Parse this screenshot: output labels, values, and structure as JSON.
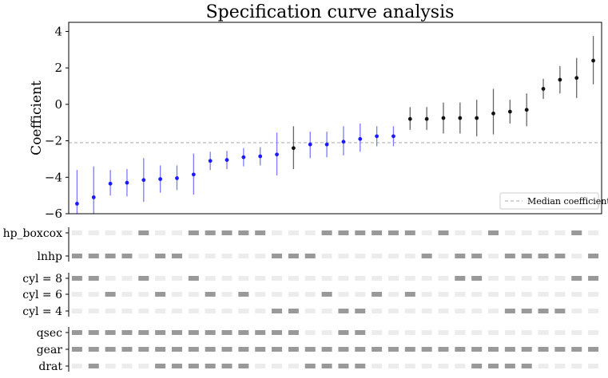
{
  "chart_data": {
    "type": "scatter",
    "title": "Specification curve analysis",
    "xlabel": "",
    "ylabel": "Coefficient",
    "ylim": [
      -6,
      4.5
    ],
    "yticks": [
      -6,
      -4,
      -2,
      0,
      2,
      4
    ],
    "median": -2.1,
    "legend": {
      "label": "Median coefficient",
      "position": "lower-right"
    },
    "colors": {
      "significant": "#1a1aff",
      "not_significant": "#111111",
      "median": "#bbbbbb",
      "active": "#999999",
      "inactive": "#ececec"
    },
    "coefficients": [
      -5.45,
      -5.1,
      -4.35,
      -4.3,
      -4.15,
      -4.1,
      -4.05,
      -3.85,
      -3.1,
      -3.05,
      -2.9,
      -2.85,
      -2.75,
      -2.4,
      -2.2,
      -2.2,
      -2.05,
      -1.9,
      -1.75,
      -1.75,
      -0.8,
      -0.8,
      -0.75,
      -0.75,
      -0.75,
      -0.5,
      -0.4,
      -0.3,
      0.85,
      1.35,
      1.45,
      2.4
    ],
    "ci_low": [
      -7.3,
      -6.8,
      -5.0,
      -5.05,
      -5.35,
      -4.85,
      -4.7,
      -4.95,
      -3.6,
      -3.55,
      -3.4,
      -3.35,
      -3.9,
      -3.55,
      -2.95,
      -2.9,
      -2.8,
      -2.6,
      -2.3,
      -2.3,
      -1.4,
      -1.4,
      -1.6,
      -1.6,
      -1.75,
      -1.65,
      -1.05,
      -1.2,
      0.3,
      0.6,
      0.35,
      1.1
    ],
    "ci_high": [
      -3.6,
      -3.4,
      -3.6,
      -3.55,
      -2.95,
      -3.35,
      -3.35,
      -2.7,
      -2.6,
      -2.55,
      -2.4,
      -2.35,
      -1.55,
      -1.2,
      -1.5,
      -1.5,
      -1.2,
      -1.05,
      -1.2,
      -1.2,
      -0.15,
      -0.15,
      0.1,
      0.1,
      0.25,
      0.85,
      0.25,
      0.6,
      1.4,
      2.1,
      2.55,
      3.75
    ],
    "significant": [
      true,
      true,
      true,
      true,
      true,
      true,
      true,
      true,
      true,
      true,
      true,
      true,
      true,
      false,
      true,
      true,
      true,
      true,
      true,
      true,
      false,
      false,
      false,
      false,
      false,
      false,
      false,
      false,
      false,
      false,
      false,
      false
    ],
    "indicator_groups": [
      [
        {
          "label": "hp_boxcox",
          "active": [
            0,
            0,
            0,
            0,
            1,
            0,
            0,
            1,
            1,
            1,
            1,
            1,
            0,
            0,
            0,
            1,
            1,
            1,
            1,
            1,
            1,
            0,
            1,
            0,
            0,
            1,
            0,
            0,
            0,
            0,
            1,
            0
          ]
        },
        {
          "label": "lnhp",
          "active": [
            1,
            1,
            1,
            1,
            0,
            1,
            1,
            0,
            0,
            0,
            0,
            0,
            1,
            1,
            1,
            0,
            0,
            0,
            0,
            0,
            0,
            1,
            0,
            1,
            1,
            0,
            1,
            1,
            1,
            1,
            0,
            1
          ]
        }
      ],
      [
        {
          "label": "cyl = 8",
          "active": [
            1,
            1,
            0,
            0,
            1,
            0,
            0,
            1,
            0,
            0,
            0,
            0,
            0,
            0,
            0,
            0,
            0,
            0,
            0,
            0,
            0,
            0,
            0,
            1,
            1,
            0,
            0,
            0,
            0,
            0,
            1,
            1
          ]
        },
        {
          "label": "cyl = 6",
          "active": [
            0,
            0,
            1,
            0,
            0,
            1,
            0,
            0,
            1,
            0,
            1,
            0,
            0,
            0,
            0,
            1,
            0,
            0,
            1,
            0,
            1,
            0,
            0,
            0,
            0,
            0,
            0,
            0,
            0,
            0,
            0,
            0
          ]
        },
        {
          "label": "cyl = 4",
          "active": [
            0,
            0,
            0,
            0,
            0,
            0,
            0,
            0,
            0,
            0,
            0,
            0,
            1,
            1,
            0,
            0,
            1,
            1,
            0,
            0,
            0,
            0,
            0,
            0,
            0,
            0,
            1,
            1,
            1,
            1,
            0,
            0
          ]
        }
      ],
      [
        {
          "label": "qsec",
          "active": [
            1,
            1,
            1,
            1,
            1,
            1,
            1,
            1,
            1,
            1,
            1,
            1,
            1,
            1,
            0,
            0,
            1,
            1,
            0,
            0,
            0,
            0,
            0,
            0,
            0,
            0,
            0,
            0,
            0,
            0,
            0,
            0
          ]
        },
        {
          "label": "gear",
          "active": [
            1,
            1,
            1,
            1,
            1,
            1,
            1,
            1,
            1,
            1,
            1,
            1,
            1,
            1,
            1,
            1,
            1,
            1,
            1,
            1,
            1,
            1,
            1,
            1,
            1,
            1,
            1,
            1,
            1,
            1,
            1,
            1
          ]
        },
        {
          "label": "drat",
          "active": [
            0,
            1,
            0,
            0,
            0,
            1,
            1,
            1,
            1,
            1,
            1,
            0,
            0,
            0,
            1,
            1,
            1,
            1,
            0,
            0,
            0,
            0,
            0,
            0,
            1,
            1,
            1,
            1,
            0,
            0,
            0,
            0
          ]
        }
      ]
    ]
  }
}
